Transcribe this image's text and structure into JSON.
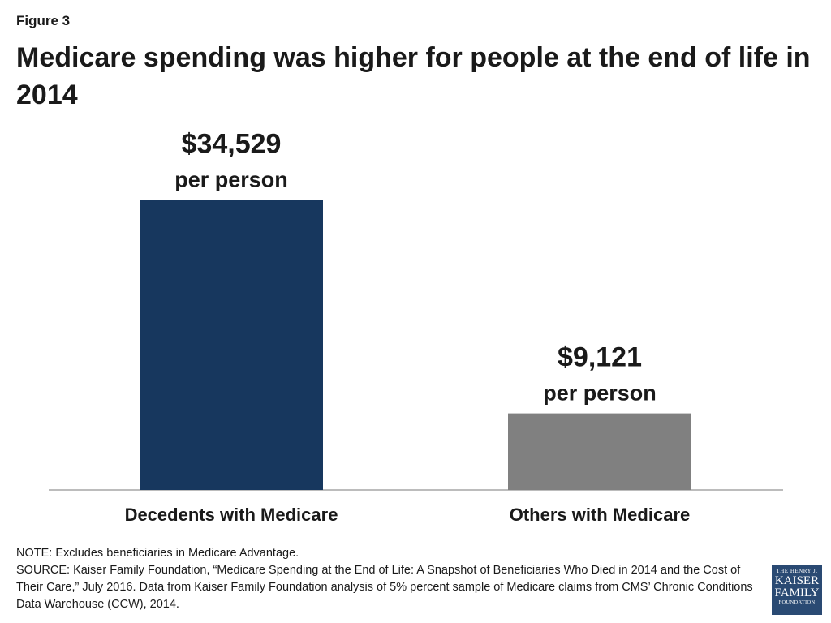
{
  "figure_label": "Figure 3",
  "title": "Medicare spending was higher for people at the end of life in 2014",
  "chart_data": {
    "type": "bar",
    "categories": [
      "Decedents with Medicare",
      "Others with Medicare"
    ],
    "values": [
      34529,
      9121
    ],
    "value_labels": [
      "$34,529",
      "$9,121"
    ],
    "unit_label": "per person",
    "colors": [
      "#17375e",
      "#808080"
    ],
    "ylim": [
      0,
      40000
    ],
    "grid": false,
    "legend": "none"
  },
  "notes": {
    "note": "NOTE: Excludes beneficiaries in Medicare Advantage.",
    "source": "SOURCE: Kaiser Family Foundation, “Medicare Spending at the End of Life: A Snapshot of Beneficiaries Who Died in 2014 and the Cost of Their Care,” July 2016. Data from Kaiser Family Foundation analysis of 5% percent sample of Medicare claims from CMS’ Chronic Conditions Data Warehouse (CCW), 2014."
  },
  "logo": {
    "line1": "THE HENRY J.",
    "line2": "KAISER",
    "line3": "FAMILY",
    "line4": "FOUNDATION"
  }
}
